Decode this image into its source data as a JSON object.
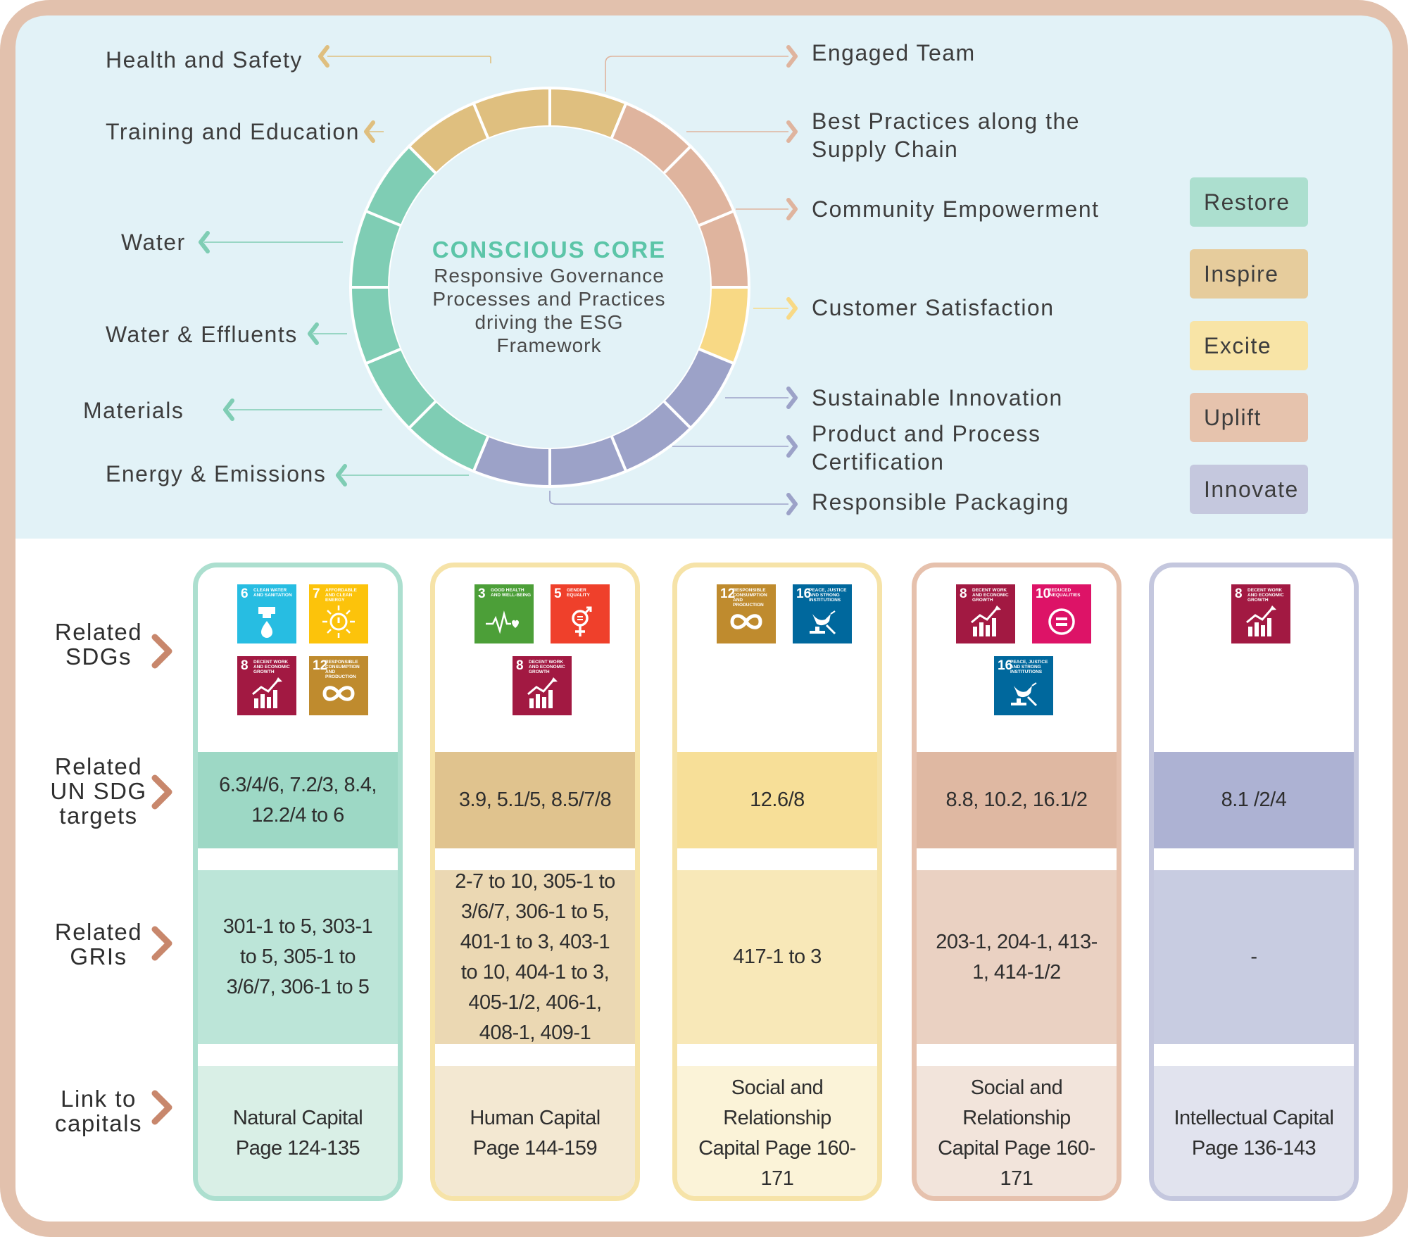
{
  "center": {
    "title": "CONSCIOUS CORE",
    "subtitle_lines": [
      "Responsive Governance",
      "Processes and Practices",
      "driving the ESG",
      "Framework"
    ]
  },
  "left_labels": [
    "Health and Safety",
    "Training and Education",
    "Water",
    "Water & Effluents",
    "Materials",
    "Energy & Emissions"
  ],
  "right_labels": [
    "Engaged Team",
    "Best Practices along the Supply Chain",
    "Community Empowerment",
    "Customer Satisfaction",
    "Sustainable Innovation",
    "Product and Process Certification",
    "Responsible Packaging"
  ],
  "legend": [
    {
      "label": "Restore",
      "color": "#acdfcf"
    },
    {
      "label": "Inspire",
      "color": "#e6cc9c"
    },
    {
      "label": "Excite",
      "color": "#f8e4a6"
    },
    {
      "label": "Uplift",
      "color": "#e6c3ad"
    },
    {
      "label": "Innovate",
      "color": "#c5c8de"
    }
  ],
  "ring_colors": {
    "restore": "#7fcdb4",
    "inspire": "#dfbf7f",
    "excite": "#f8d985",
    "uplift": "#dfb49e",
    "innovate": "#9ca2c8"
  },
  "row_labels": {
    "sdgs": "Related SDGs",
    "targets": "Related UN SDG targets",
    "gris": "Related GRIs",
    "capitals": "Link to capitals"
  },
  "sdg_icons": {
    "3": {
      "num": "3",
      "text": "GOOD HEALTH AND WELL-BEING",
      "color": "#4c9f38",
      "icon": "heartbeat-icon"
    },
    "5": {
      "num": "5",
      "text": "GENDER EQUALITY",
      "color": "#ef402b",
      "icon": "gender-equality-icon"
    },
    "6": {
      "num": "6",
      "text": "CLEAN WATER AND SANITATION",
      "color": "#27bde2",
      "icon": "water-drop-icon"
    },
    "7": {
      "num": "7",
      "text": "AFFORDABLE AND CLEAN ENERGY",
      "color": "#fcc30b",
      "icon": "sun-power-icon"
    },
    "8": {
      "num": "8",
      "text": "DECENT WORK AND ECONOMIC GROWTH",
      "color": "#a21942",
      "icon": "growth-chart-icon"
    },
    "10": {
      "num": "10",
      "text": "REDUCED INEQUALITIES",
      "color": "#dd1367",
      "icon": "equals-icon"
    },
    "12": {
      "num": "12",
      "text": "RESPONSIBLE CONSUMPTION AND PRODUCTION",
      "color": "#bf8b2e",
      "icon": "infinity-icon"
    },
    "16": {
      "num": "16",
      "text": "PEACE, JUSTICE AND STRONG INSTITUTIONS",
      "color": "#00689d",
      "icon": "dove-icon"
    }
  },
  "columns": [
    {
      "key": "restore",
      "sdgs": [
        "6",
        "7",
        "8",
        "12"
      ],
      "targets": "6.3/4/6, 7.2/3, 8.4, 12.2/4 to 6",
      "gris": "301-1 to 5, 303-1 to 5, 305-1 to 3/6/7, 306-1 to 5",
      "capital": "Natural Capital Page 124-135",
      "border": "#acdfcf",
      "target_bg": "#9dd8c5",
      "gri_bg": "#bce5d8",
      "capital_bg": "#d9efe6"
    },
    {
      "key": "inspire",
      "sdgs": [
        "3",
        "5",
        "8"
      ],
      "targets": "3.9, 5.1/5, 8.5/7/8",
      "gris": "2-7 to 10, 305-1 to 3/6/7, 306-1 to 5, 401-1 to 3, 403-1 to 10, 404-1 to 3, 405-1/2, 406-1, 408-1, 409-1",
      "capital": "Human Capital Page 144-159",
      "border": "#f6e3a8",
      "target_bg": "#e0c38e",
      "gri_bg": "#ebd8b3",
      "capital_bg": "#f3e8d2"
    },
    {
      "key": "excite",
      "sdgs": [
        "12",
        "16"
      ],
      "targets": "12.6/8",
      "gris": "417-1 to 3",
      "capital": "Social and Relationship Capital  Page 160-171",
      "border": "#f6e3a8",
      "target_bg": "#f7df98",
      "gri_bg": "#f8e8b8",
      "capital_bg": "#fbf3d8"
    },
    {
      "key": "uplift",
      "sdgs": [
        "8",
        "10",
        "16"
      ],
      "targets": "8.8, 10.2, 16.1/2",
      "gris": "203-1, 204-1, 413-1, 414-1/2",
      "capital": "Social and Relationship Capital Page 160-171",
      "border": "#e6c1ad",
      "target_bg": "#dfb8a2",
      "gri_bg": "#ead1c2",
      "capital_bg": "#f2e4db"
    },
    {
      "key": "innovate",
      "sdgs": [
        "8"
      ],
      "targets": "8.1 /2/4",
      "gris": "-",
      "capital": "Intellectual Capital Page 136-143",
      "border": "#c4c7de",
      "target_bg": "#adb2d3",
      "gri_bg": "#c8cce1",
      "capital_bg": "#e1e3ee"
    }
  ]
}
